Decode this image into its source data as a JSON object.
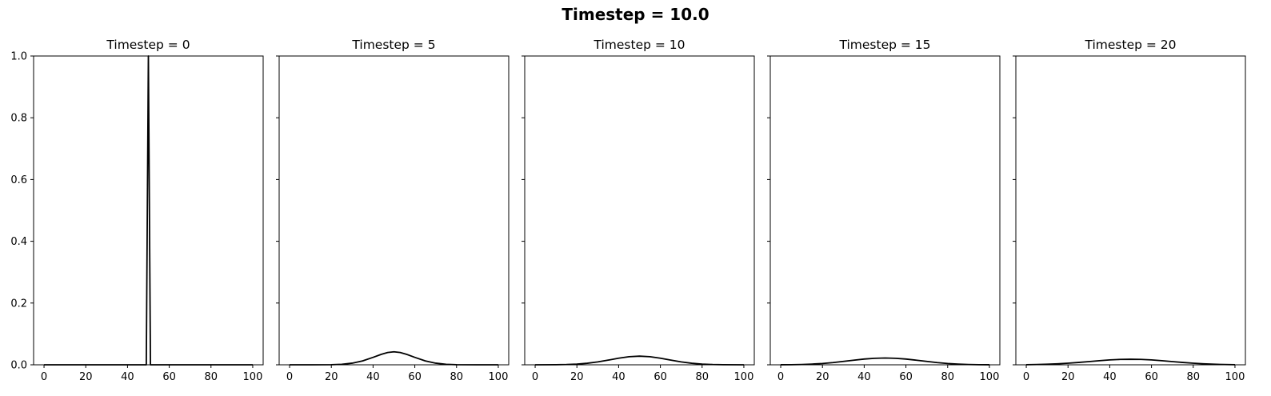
{
  "figure": {
    "suptitle": "Timestep = 10.0"
  },
  "chart_data": [
    {
      "type": "line",
      "title": "Timestep = 0",
      "xlabel": "",
      "ylabel": "",
      "xlim": [
        -5,
        105
      ],
      "ylim": [
        0,
        1
      ],
      "xticks": [
        0,
        20,
        40,
        60,
        80,
        100
      ],
      "yticks": [
        0.0,
        0.2,
        0.4,
        0.6,
        0.8,
        1.0
      ],
      "ytick_labels_shown": true,
      "grid": false,
      "series": [
        {
          "color": "#000000",
          "x": [
            0,
            48,
            49,
            50,
            51,
            52,
            100
          ],
          "y": [
            0,
            0,
            0,
            1.0,
            0,
            0,
            0
          ]
        }
      ]
    },
    {
      "type": "line",
      "title": "Timestep = 5",
      "xlabel": "",
      "ylabel": "",
      "xlim": [
        -5,
        105
      ],
      "ylim": [
        0,
        1
      ],
      "xticks": [
        0,
        20,
        40,
        60,
        80,
        100
      ],
      "yticks": [
        0.0,
        0.2,
        0.4,
        0.6,
        0.8,
        1.0
      ],
      "ytick_labels_shown": false,
      "grid": false,
      "series": [
        {
          "color": "#000000",
          "x": [
            0,
            10,
            20,
            25,
            30,
            35,
            40,
            44,
            47,
            50,
            53,
            56,
            60,
            65,
            70,
            75,
            80,
            90,
            100
          ],
          "y": [
            0,
            0,
            0.0004,
            0.0017,
            0.0053,
            0.0126,
            0.0241,
            0.034,
            0.0398,
            0.042,
            0.0398,
            0.034,
            0.0241,
            0.0126,
            0.0053,
            0.0017,
            0.0004,
            0,
            0
          ]
        }
      ]
    },
    {
      "type": "line",
      "title": "Timestep = 10",
      "xlabel": "",
      "ylabel": "",
      "xlim": [
        -5,
        105
      ],
      "ylim": [
        0,
        1
      ],
      "xticks": [
        0,
        20,
        40,
        60,
        80,
        100
      ],
      "yticks": [
        0.0,
        0.2,
        0.4,
        0.6,
        0.8,
        1.0
      ],
      "ytick_labels_shown": false,
      "grid": false,
      "series": [
        {
          "color": "#000000",
          "x": [
            0,
            10,
            15,
            20,
            25,
            30,
            35,
            40,
            45,
            50,
            55,
            60,
            65,
            70,
            75,
            80,
            85,
            90,
            100
          ],
          "y": [
            0,
            0.0003,
            0.0009,
            0.0023,
            0.005,
            0.0093,
            0.0151,
            0.0213,
            0.0262,
            0.028,
            0.0262,
            0.0213,
            0.0151,
            0.0093,
            0.005,
            0.0023,
            0.0009,
            0.0003,
            0
          ]
        }
      ]
    },
    {
      "type": "line",
      "title": "Timestep = 15",
      "xlabel": "",
      "ylabel": "",
      "xlim": [
        -5,
        105
      ],
      "ylim": [
        0,
        1
      ],
      "xticks": [
        0,
        20,
        40,
        60,
        80,
        100
      ],
      "yticks": [
        0.0,
        0.2,
        0.4,
        0.6,
        0.8,
        1.0
      ],
      "ytick_labels_shown": false,
      "grid": false,
      "series": [
        {
          "color": "#000000",
          "x": [
            0,
            5,
            10,
            15,
            20,
            25,
            30,
            35,
            40,
            45,
            50,
            55,
            60,
            65,
            70,
            75,
            80,
            85,
            90,
            95,
            100
          ],
          "y": [
            0.0001,
            0.0004,
            0.001,
            0.0023,
            0.0043,
            0.0072,
            0.0109,
            0.0149,
            0.0186,
            0.0211,
            0.022,
            0.0211,
            0.0186,
            0.0149,
            0.0109,
            0.0072,
            0.0043,
            0.0023,
            0.001,
            0.0004,
            0.0001
          ]
        }
      ]
    },
    {
      "type": "line",
      "title": "Timestep = 20",
      "xlabel": "",
      "ylabel": "",
      "xlim": [
        -5,
        105
      ],
      "ylim": [
        0,
        1
      ],
      "xticks": [
        0,
        20,
        40,
        60,
        80,
        100
      ],
      "yticks": [
        0.0,
        0.2,
        0.4,
        0.6,
        0.8,
        1.0
      ],
      "ytick_labels_shown": false,
      "grid": false,
      "series": [
        {
          "color": "#000000",
          "x": [
            0,
            5,
            10,
            15,
            20,
            25,
            30,
            35,
            40,
            45,
            50,
            55,
            60,
            65,
            70,
            75,
            80,
            85,
            90,
            95,
            100
          ],
          "y": [
            0.0004,
            0.0009,
            0.0018,
            0.0032,
            0.0051,
            0.0076,
            0.0104,
            0.0133,
            0.0158,
            0.0175,
            0.018,
            0.0175,
            0.0158,
            0.0133,
            0.0104,
            0.0076,
            0.0051,
            0.0032,
            0.0018,
            0.0009,
            0.0004
          ]
        }
      ]
    }
  ]
}
